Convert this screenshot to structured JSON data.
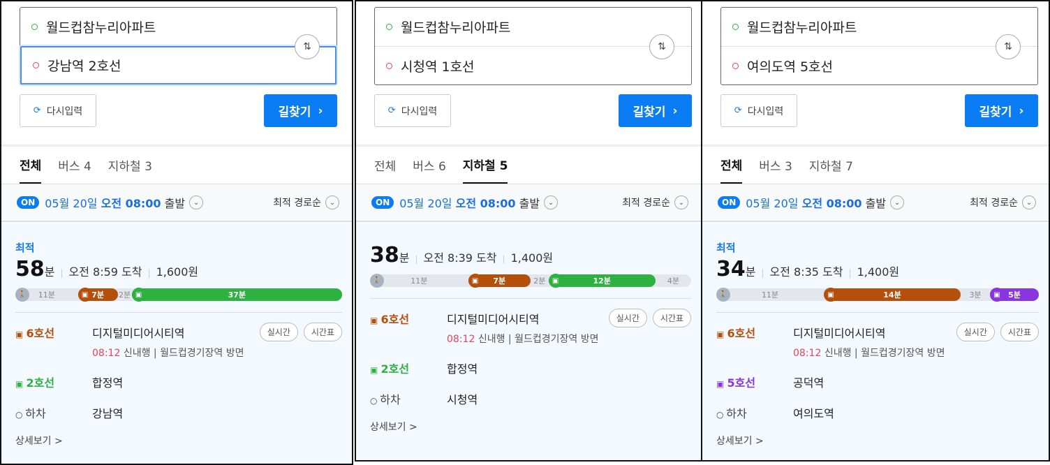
{
  "panels": [
    {
      "origin": "월드컵참누리아파트",
      "destination": "강남역 2호선",
      "dest_focused": true,
      "reset": "다시입력",
      "search": "길찾기",
      "tabs": [
        {
          "label": "전체",
          "active": true
        },
        {
          "label": "버스 4",
          "active": false
        },
        {
          "label": "지하철 3",
          "active": false
        }
      ],
      "on": "ON",
      "date": "05월 20일",
      "time": "오전 08:00",
      "depart": "출발",
      "sort": "최적 경로순",
      "best": "최적",
      "duration": "58",
      "unit": "분",
      "arrival": "오전 8:59 도착",
      "fare": "1,600원",
      "segments": [
        {
          "type": "walk",
          "label": "11분",
          "minutes": 11
        },
        {
          "type": "ride",
          "label": "7분",
          "minutes": 7,
          "color": "#b5500b"
        },
        {
          "type": "wait",
          "label": "2분",
          "minutes": 2
        },
        {
          "type": "ride",
          "label": "37분",
          "minutes": 37,
          "color": "#2db13f"
        }
      ],
      "steps": [
        {
          "line": "6호선",
          "color": "#b5500b",
          "station": "디지털미디어시티역",
          "realtime": "실시간",
          "timetable": "시간표",
          "dep_time": "08:12",
          "detail": "신내행",
          "direction": "월드컵경기장역 방면"
        },
        {
          "line": "2호선",
          "color": "#2db13f",
          "station": "합정역"
        },
        {
          "line": "하차",
          "color": "#444",
          "station": "강남역",
          "alight": true
        }
      ],
      "more": "상세보기 >"
    },
    {
      "origin": "월드컵참누리아파트",
      "destination": "시청역 1호선",
      "dest_focused": false,
      "reset": "다시입력",
      "search": "길찾기",
      "tabs": [
        {
          "label": "전체",
          "active": false
        },
        {
          "label": "버스 6",
          "active": false
        },
        {
          "label": "지하철 5",
          "active": true
        }
      ],
      "on": "ON",
      "date": "05월 20일",
      "time": "오전 08:00",
      "depart": "출발",
      "sort": "최적 경로순",
      "best": "",
      "duration": "38",
      "unit": "분",
      "arrival": "오전 8:39 도착",
      "fare": "1,400원",
      "segments": [
        {
          "type": "walk",
          "label": "11분",
          "minutes": 11
        },
        {
          "type": "ride",
          "label": "7분",
          "minutes": 7,
          "color": "#b5500b"
        },
        {
          "type": "wait",
          "label": "2분",
          "minutes": 2
        },
        {
          "type": "ride",
          "label": "12분",
          "minutes": 12,
          "color": "#2db13f"
        },
        {
          "type": "wait",
          "label": "4분",
          "minutes": 4
        }
      ],
      "steps": [
        {
          "line": "6호선",
          "color": "#b5500b",
          "station": "디지털미디어시티역",
          "realtime": "실시간",
          "timetable": "시간표",
          "dep_time": "08:12",
          "detail": "신내행",
          "direction": "월드컵경기장역 방면"
        },
        {
          "line": "2호선",
          "color": "#2db13f",
          "station": "합정역"
        },
        {
          "line": "하차",
          "color": "#444",
          "station": "시청역",
          "alight": true
        }
      ],
      "more": "상세보기 >"
    },
    {
      "origin": "월드컵참누리아파트",
      "destination": "여의도역 5호선",
      "dest_focused": false,
      "reset": "다시입력",
      "search": "길찾기",
      "tabs": [
        {
          "label": "전체",
          "active": true
        },
        {
          "label": "버스 3",
          "active": false
        },
        {
          "label": "지하철 7",
          "active": false
        }
      ],
      "on": "ON",
      "date": "05월 20일",
      "time": "오전 08:00",
      "depart": "출발",
      "sort": "최적 경로순",
      "best": "최적",
      "duration": "34",
      "unit": "분",
      "arrival": "오전 8:35 도착",
      "fare": "1,400원",
      "segments": [
        {
          "type": "walk",
          "label": "11분",
          "minutes": 11
        },
        {
          "type": "ride",
          "label": "14분",
          "minutes": 14,
          "color": "#b5500b"
        },
        {
          "type": "wait",
          "label": "3분",
          "minutes": 3
        },
        {
          "type": "ride",
          "label": "5분",
          "minutes": 5,
          "color": "#8936e0"
        }
      ],
      "steps": [
        {
          "line": "6호선",
          "color": "#b5500b",
          "station": "디지털미디어시티역",
          "realtime": "실시간",
          "timetable": "시간표",
          "dep_time": "08:12",
          "detail": "신내행",
          "direction": "월드컵경기장역 방면"
        },
        {
          "line": "5호선",
          "color": "#8936e0",
          "station": "공덕역"
        },
        {
          "line": "하차",
          "color": "#444",
          "station": "여의도역",
          "alight": true
        }
      ],
      "more": "상세보기 >"
    }
  ]
}
